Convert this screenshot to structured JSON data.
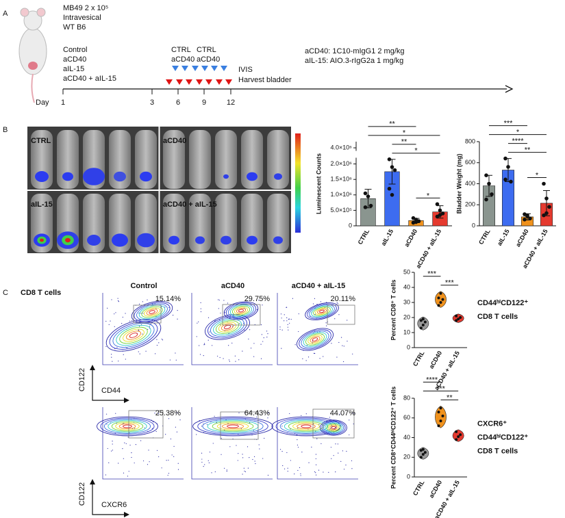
{
  "panel_a": {
    "label": "A",
    "mouse_lines": [
      "MB49 2 x 10⁵",
      "Intravesical",
      "WT B6"
    ],
    "groups": [
      {
        "name": "Control",
        "color": "#111111"
      },
      {
        "name": "aCD40",
        "color": "#e8950f"
      },
      {
        "name": "aIL-15",
        "color": "#3a7fe0"
      },
      {
        "name": "aCD40 + aIL-15",
        "color": "#e01515"
      }
    ],
    "schedule": [
      [
        "CTRL",
        "aCD40"
      ],
      [
        "CTRL",
        "aCD40"
      ]
    ],
    "endpoint": [
      "IVIS",
      "Harvest bladder"
    ],
    "dosing": [
      "aCD40: 1C10-mIgG1 2 mg/kg",
      "aIL-15: AIO.3-rIgG2a 1 mg/kg"
    ],
    "day_label": "Day",
    "days": [
      1,
      3,
      6,
      9,
      12
    ]
  },
  "panel_b": {
    "label": "B",
    "image_labels": [
      "CTRL",
      "aCD40",
      "aIL-15",
      "aCD40 + aIL-15"
    ],
    "charts": [
      {
        "type": "bar",
        "ylabel": "Luminescent Counts",
        "categories": [
          "CTRL",
          "aIL-15",
          "aCD40",
          "aCD40 + aIL-15"
        ],
        "colors": [
          "#8a958f",
          "#3d6cf0",
          "#f0921d",
          "#e53a2f"
        ],
        "values": [
          880000,
          1750000,
          170000,
          450000
        ],
        "errors": [
          300000,
          400000,
          70000,
          200000
        ],
        "points": [
          [
            1050000,
            950000,
            650000,
            600000
          ],
          [
            2150000,
            1900000,
            1800000,
            1200000,
            1000000
          ],
          [
            250000,
            200000,
            150000,
            100000,
            120000
          ],
          [
            700000,
            500000,
            400000,
            300000,
            350000
          ]
        ],
        "ylim": [
          0,
          4200000
        ],
        "axis_break": [
          2200000,
          3900000
        ],
        "yticks": [
          0,
          {
            "value": 500000,
            "label": "5.0×10⁵"
          },
          {
            "value": 1000000,
            "label": "1.0×10⁶"
          },
          {
            "value": 1500000,
            "label": "1.5×10⁶"
          },
          {
            "value": 2000000,
            "label": "2.0×10⁶"
          },
          {
            "value": 4000000,
            "label": "4.0×10⁶"
          }
        ],
        "comparisons": [
          {
            "pair": [
              2,
              3
            ],
            "label": "*"
          },
          {
            "pair": [
              1,
              3
            ],
            "label": "*"
          },
          {
            "pair": [
              1,
              2
            ],
            "label": "**"
          },
          {
            "pair": [
              0,
              3
            ],
            "label": "*"
          },
          {
            "pair": [
              0,
              2
            ],
            "label": "**"
          }
        ]
      },
      {
        "type": "bar",
        "ylabel": "Bladder Weight (mg)",
        "categories": [
          "CTRL",
          "aIL-15",
          "aCD40",
          "aCD40 + aIL-15"
        ],
        "colors": [
          "#8a958f",
          "#3d6cf0",
          "#f0921d",
          "#e53a2f"
        ],
        "values": [
          380,
          530,
          85,
          215
        ],
        "errors": [
          100,
          110,
          30,
          120
        ],
        "points": [
          [
            480,
            400,
            300,
            250
          ],
          [
            640,
            560,
            420,
            440
          ],
          [
            110,
            90,
            70,
            60,
            100
          ],
          [
            400,
            260,
            180,
            100,
            120
          ]
        ],
        "ylim": [
          0,
          800
        ],
        "yticks": [
          0,
          200,
          400,
          600,
          800
        ],
        "comparisons": [
          {
            "pair": [
              2,
              3
            ],
            "label": "*"
          },
          {
            "pair": [
              1,
              3
            ],
            "label": "**"
          },
          {
            "pair": [
              1,
              2
            ],
            "label": "****"
          },
          {
            "pair": [
              0,
              3
            ],
            "label": "*"
          },
          {
            "pair": [
              0,
              2
            ],
            "label": "***"
          }
        ]
      }
    ]
  },
  "panel_c": {
    "label": "C",
    "title": "CD8 T cells",
    "columns": [
      {
        "name": "Control",
        "color": "#111111"
      },
      {
        "name": "aCD40",
        "color": "#e8950f"
      },
      {
        "name": "aCD40 + aIL-15",
        "color": "#e01515"
      }
    ],
    "rows": [
      {
        "percentages": [
          "15.14%",
          "29.75%",
          "20.11%"
        ],
        "ylabel": "CD122",
        "xlabel": "CD44"
      },
      {
        "percentages": [
          "25.38%",
          "64.43%",
          "44.07%"
        ],
        "ylabel": "CD122",
        "xlabel": "CXCR6"
      }
    ],
    "charts": [
      {
        "type": "violin",
        "ylabel": "Percent CD8⁺ T cells",
        "side_labels": [
          "CD44ʰⁱCD122⁺",
          "CD8 T cells"
        ],
        "categories": [
          "CTRL",
          "aCD40",
          "aCD40 + aIL-15"
        ],
        "colors": [
          "#9a9a9a",
          "#f0921d",
          "#e53a2f"
        ],
        "points": [
          [
            13,
            15,
            17,
            18,
            19
          ],
          [
            28,
            30,
            32,
            33,
            36
          ],
          [
            18,
            19,
            20,
            21
          ]
        ],
        "ylim": [
          0,
          50
        ],
        "yticks": [
          0,
          10,
          20,
          30,
          40,
          50
        ],
        "comparisons": [
          {
            "pair": [
              1,
              2
            ],
            "label": "***"
          },
          {
            "pair": [
              0,
              1
            ],
            "label": "***"
          }
        ]
      },
      {
        "type": "violin",
        "ylabel": "Percent CD8⁺CD44ʰⁱCD122⁺ T cells",
        "side_labels": [
          "CXCR6⁺",
          "CD44ʰⁱCD122⁺",
          "CD8 T cells"
        ],
        "categories": [
          "CTRL",
          "aCD40",
          "aCD40 + aIL-15"
        ],
        "colors": [
          "#9a9a9a",
          "#f0921d",
          "#e53a2f"
        ],
        "points": [
          [
            20,
            23,
            25,
            27,
            28
          ],
          [
            52,
            57,
            62,
            66,
            70
          ],
          [
            38,
            41,
            43,
            46
          ]
        ],
        "ylim": [
          0,
          80
        ],
        "yticks": [
          0,
          20,
          40,
          60,
          80
        ],
        "comparisons": [
          {
            "pair": [
              1,
              2
            ],
            "label": "**"
          },
          {
            "pair": [
              0,
              2
            ],
            "label": "***"
          },
          {
            "pair": [
              0,
              1
            ],
            "label": "****"
          }
        ]
      }
    ]
  }
}
